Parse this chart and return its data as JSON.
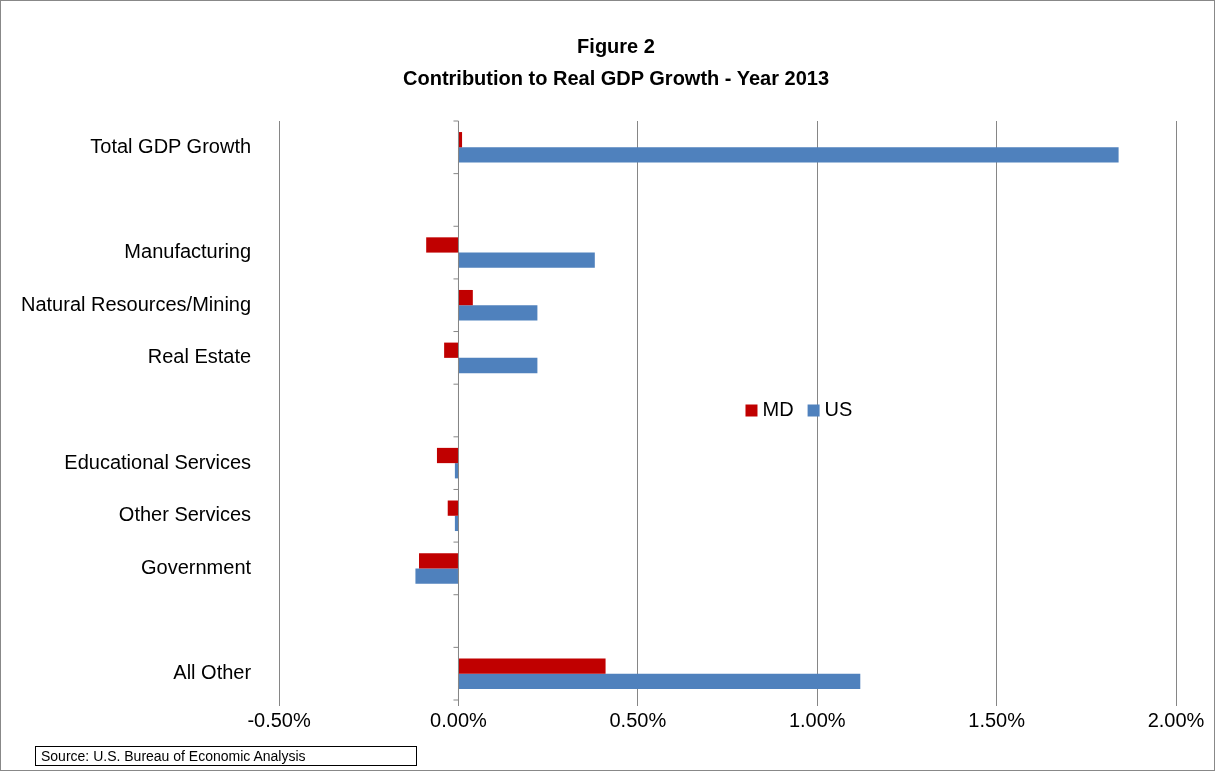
{
  "chart_data": {
    "type": "bar",
    "orientation": "horizontal",
    "title": "Figure 2",
    "subtitle": "Contribution to Real GDP Growth - Year 2013",
    "categories": [
      "Total GDP Growth",
      null,
      "Manufacturing",
      "Natural Resources/Mining",
      "Real Estate",
      null,
      "Educational Services",
      "Other Services",
      "Government",
      null,
      "All Other"
    ],
    "series": [
      {
        "name": "MD",
        "color": "#c00000",
        "values": [
          0.01,
          null,
          -0.09,
          0.04,
          -0.04,
          null,
          -0.06,
          -0.03,
          -0.11,
          null,
          0.41
        ]
      },
      {
        "name": "US",
        "color": "#4f81bd",
        "values": [
          1.84,
          null,
          0.38,
          0.22,
          0.22,
          null,
          -0.01,
          -0.01,
          -0.12,
          null,
          1.12
        ]
      }
    ],
    "xlim": [
      -0.5,
      2.0
    ],
    "xticks": [
      {
        "value": -0.5,
        "label": "-0.50%"
      },
      {
        "value": 0,
        "label": "0.00%"
      },
      {
        "value": 0.5,
        "label": "0.50%"
      },
      {
        "value": 1,
        "label": "1.00%"
      },
      {
        "value": 1.5,
        "label": "1.50%"
      },
      {
        "value": 2,
        "label": "2.00%"
      }
    ],
    "grid": "x",
    "legend": "right",
    "annotations": [
      "Source: U.S. Bureau of Economic Analysis"
    ]
  }
}
